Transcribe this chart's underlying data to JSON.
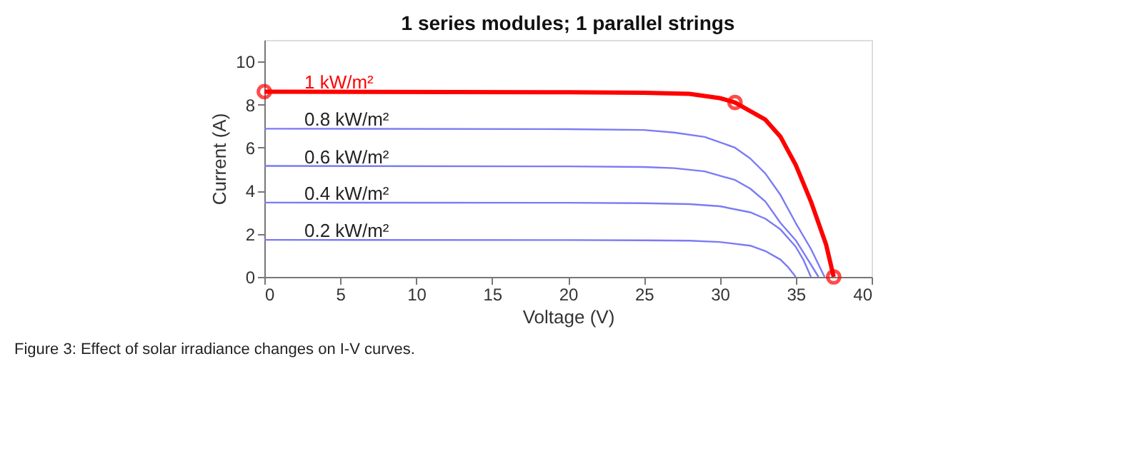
{
  "chart_data": {
    "type": "line",
    "title": "1 series modules; 1 parallel strings",
    "xlabel": "Voltage (V)",
    "ylabel": "Current (A)",
    "xlim": [
      0,
      40
    ],
    "xticks": [
      0,
      5,
      10,
      15,
      20,
      25,
      30,
      35,
      40
    ],
    "ylim": [
      0,
      11
    ],
    "yticks": [
      0,
      2,
      4,
      6,
      8,
      10
    ],
    "grid": false,
    "marker": "none",
    "line_style": "solid",
    "annotations": [
      "Figure 3: Effect of solar irradiance changes on I-V curves."
    ],
    "series": [
      {
        "name": "1 kW/m²",
        "color": "#ff0000",
        "x": [
          0,
          20,
          25,
          28,
          30,
          31,
          32,
          33,
          34,
          35,
          36,
          37,
          37.5
        ],
        "values": [
          8.6,
          8.57,
          8.55,
          8.5,
          8.3,
          8.1,
          7.7,
          7.3,
          6.5,
          5.2,
          3.5,
          1.5,
          0
        ]
      },
      {
        "name": "0.8 kW/m²",
        "color": "#7b7bf5",
        "x": [
          0,
          20,
          25,
          27,
          29,
          31,
          32,
          33,
          34,
          35,
          36,
          36.9
        ],
        "values": [
          6.88,
          6.86,
          6.82,
          6.7,
          6.5,
          6.0,
          5.5,
          4.8,
          3.8,
          2.5,
          1.3,
          0
        ]
      },
      {
        "name": "0.6 kW/m²",
        "color": "#7b7bf5",
        "x": [
          0,
          20,
          25,
          27,
          29,
          31,
          32,
          33,
          34,
          35,
          35.8,
          36.5
        ],
        "values": [
          5.15,
          5.13,
          5.1,
          5.05,
          4.9,
          4.5,
          4.1,
          3.5,
          2.5,
          1.7,
          0.8,
          0
        ]
      },
      {
        "name": "0.4 kW/m²",
        "color": "#7b7bf5",
        "x": [
          0,
          20,
          25,
          28,
          30,
          32,
          33,
          34,
          35,
          35.5,
          36
        ],
        "values": [
          3.45,
          3.44,
          3.42,
          3.38,
          3.28,
          3.0,
          2.7,
          2.2,
          1.4,
          0.8,
          0
        ]
      },
      {
        "name": "0.2 kW/m²",
        "color": "#7b7bf5",
        "x": [
          0,
          20,
          25,
          28,
          30,
          32,
          33,
          34,
          34.5,
          35
        ],
        "values": [
          1.72,
          1.71,
          1.7,
          1.68,
          1.62,
          1.45,
          1.2,
          0.8,
          0.45,
          0
        ]
      },
      {
        "type": "scatter",
        "marker": "circle",
        "color": "#ff0000",
        "x": [
          0,
          31,
          37.5
        ],
        "values": [
          8.6,
          8.1,
          0
        ]
      }
    ]
  }
}
